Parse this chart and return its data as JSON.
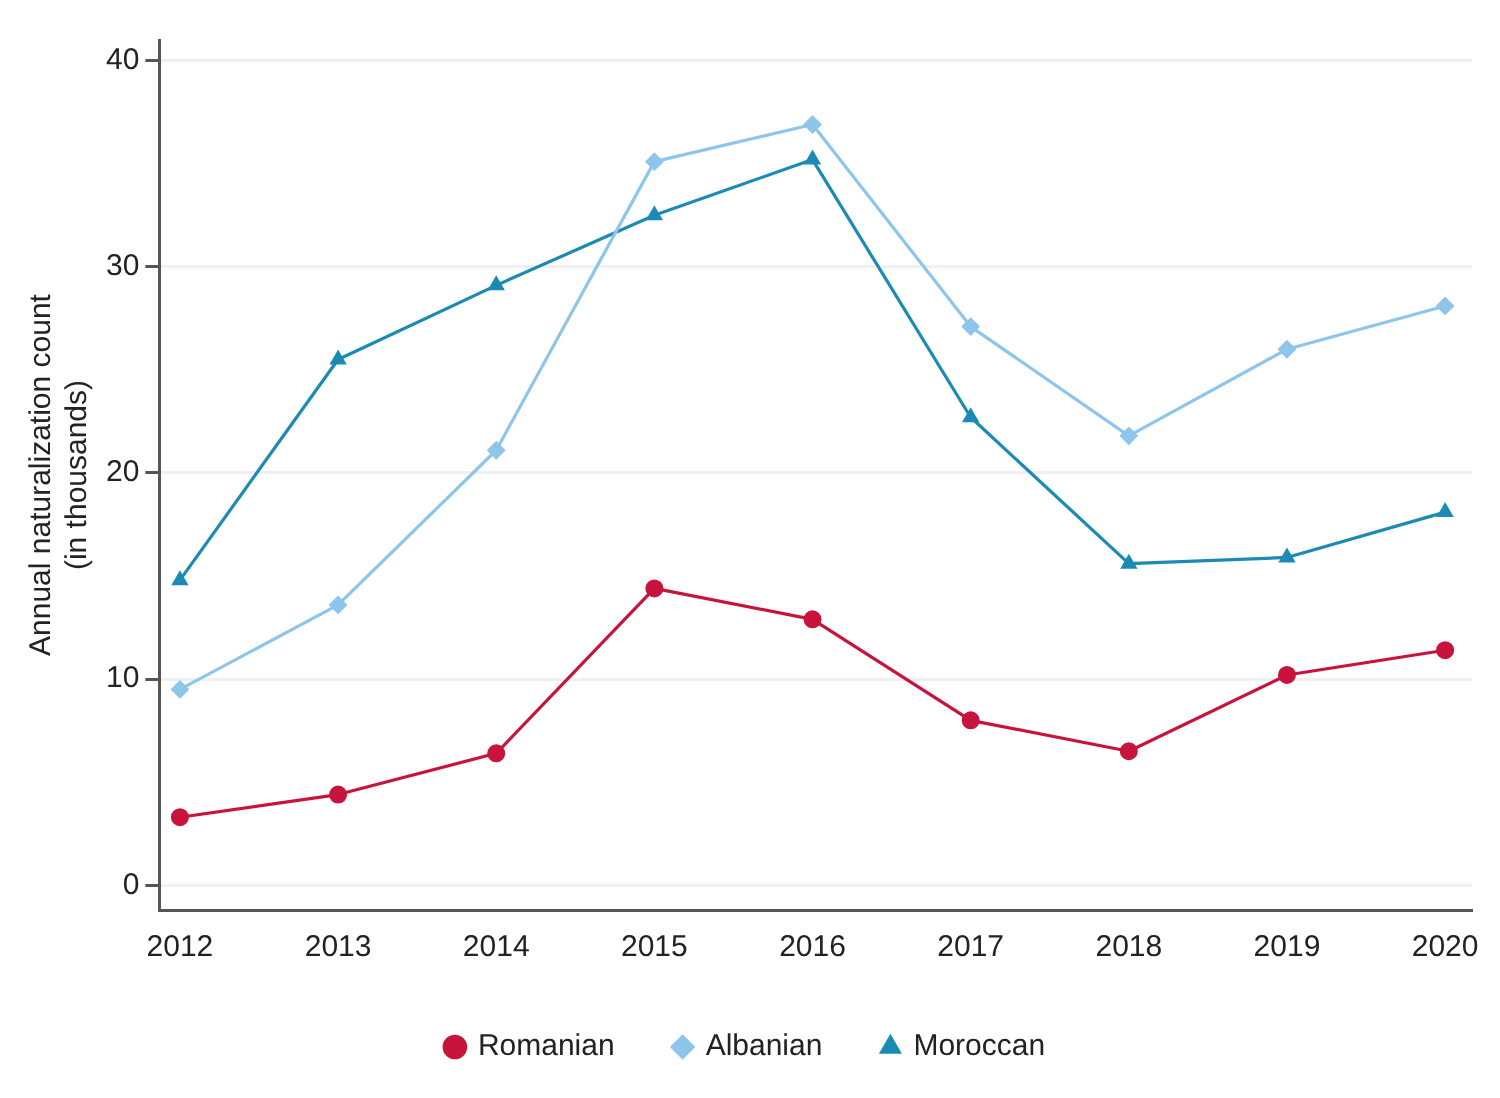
{
  "chart_data": {
    "type": "line",
    "ylabel": "Annual naturalization count\n(in thousands)",
    "x": [
      2012,
      2013,
      2014,
      2015,
      2016,
      2017,
      2018,
      2019,
      2020
    ],
    "xlim": [
      2011.87,
      2020.17
    ],
    "xticks": [
      2012,
      2013,
      2014,
      2015,
      2016,
      2017,
      2018,
      2019,
      2020
    ],
    "ylim": [
      -1.2,
      41
    ],
    "yticks": [
      0,
      10,
      20,
      30,
      40
    ],
    "grid": "y",
    "legend": "bottom",
    "line_style": "solid",
    "series": [
      {
        "name": "Romanian",
        "color": "#c8143c",
        "marker": "circle",
        "values": [
          3.3,
          4.4,
          6.4,
          14.4,
          12.9,
          8.0,
          6.5,
          10.2,
          11.4
        ]
      },
      {
        "name": "Albanian",
        "color": "#8ec5ea",
        "marker": "diamond",
        "values": [
          9.5,
          13.6,
          21.1,
          35.1,
          36.9,
          27.1,
          21.8,
          26.0,
          28.1
        ]
      },
      {
        "name": "Moroccan",
        "color": "#1b8bb4",
        "marker": "triangle",
        "values": [
          14.8,
          25.5,
          29.1,
          32.5,
          35.2,
          22.7,
          15.6,
          15.9,
          18.1
        ]
      }
    ]
  }
}
